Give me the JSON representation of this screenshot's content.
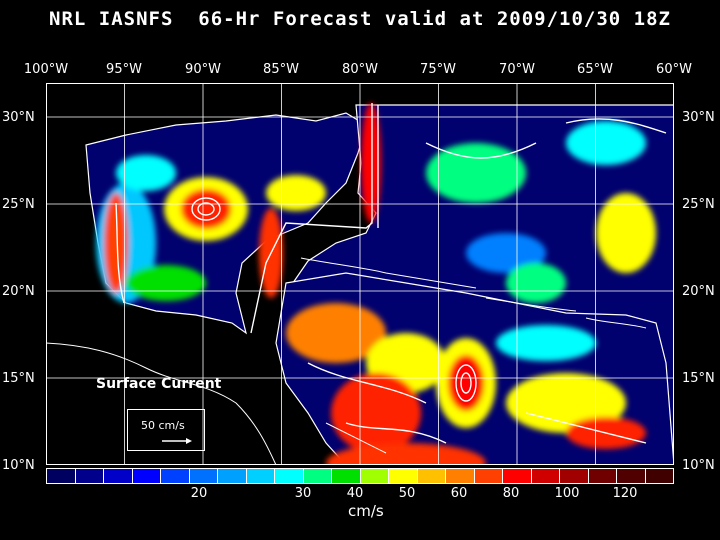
{
  "title": "NRL IASNFS  66-Hr Forecast valid at 2009/10/30 18Z",
  "lon_labels": [
    "100°W",
    "95°W",
    "90°W",
    "85°W",
    "80°W",
    "75°W",
    "70°W",
    "65°W",
    "60°W"
  ],
  "lat_labels": [
    "30°N",
    "25°N",
    "20°N",
    "15°N",
    "10°N"
  ],
  "legend": {
    "title": "Surface Current",
    "ref_label": "50 cm/s"
  },
  "colorbar": {
    "colors": [
      "#000060",
      "#00008c",
      "#0000c8",
      "#0000ff",
      "#0040ff",
      "#0070ff",
      "#00a0ff",
      "#00d0ff",
      "#00ffff",
      "#00ff80",
      "#00e000",
      "#a0ff00",
      "#ffff00",
      "#ffc000",
      "#ff8000",
      "#ff4000",
      "#ff0000",
      "#d00000",
      "#a00000",
      "#700000",
      "#500000",
      "#400000"
    ],
    "ticks": [
      "20",
      "30",
      "40",
      "50",
      "60",
      "80",
      "100",
      "120"
    ],
    "units": "cm/s"
  }
}
